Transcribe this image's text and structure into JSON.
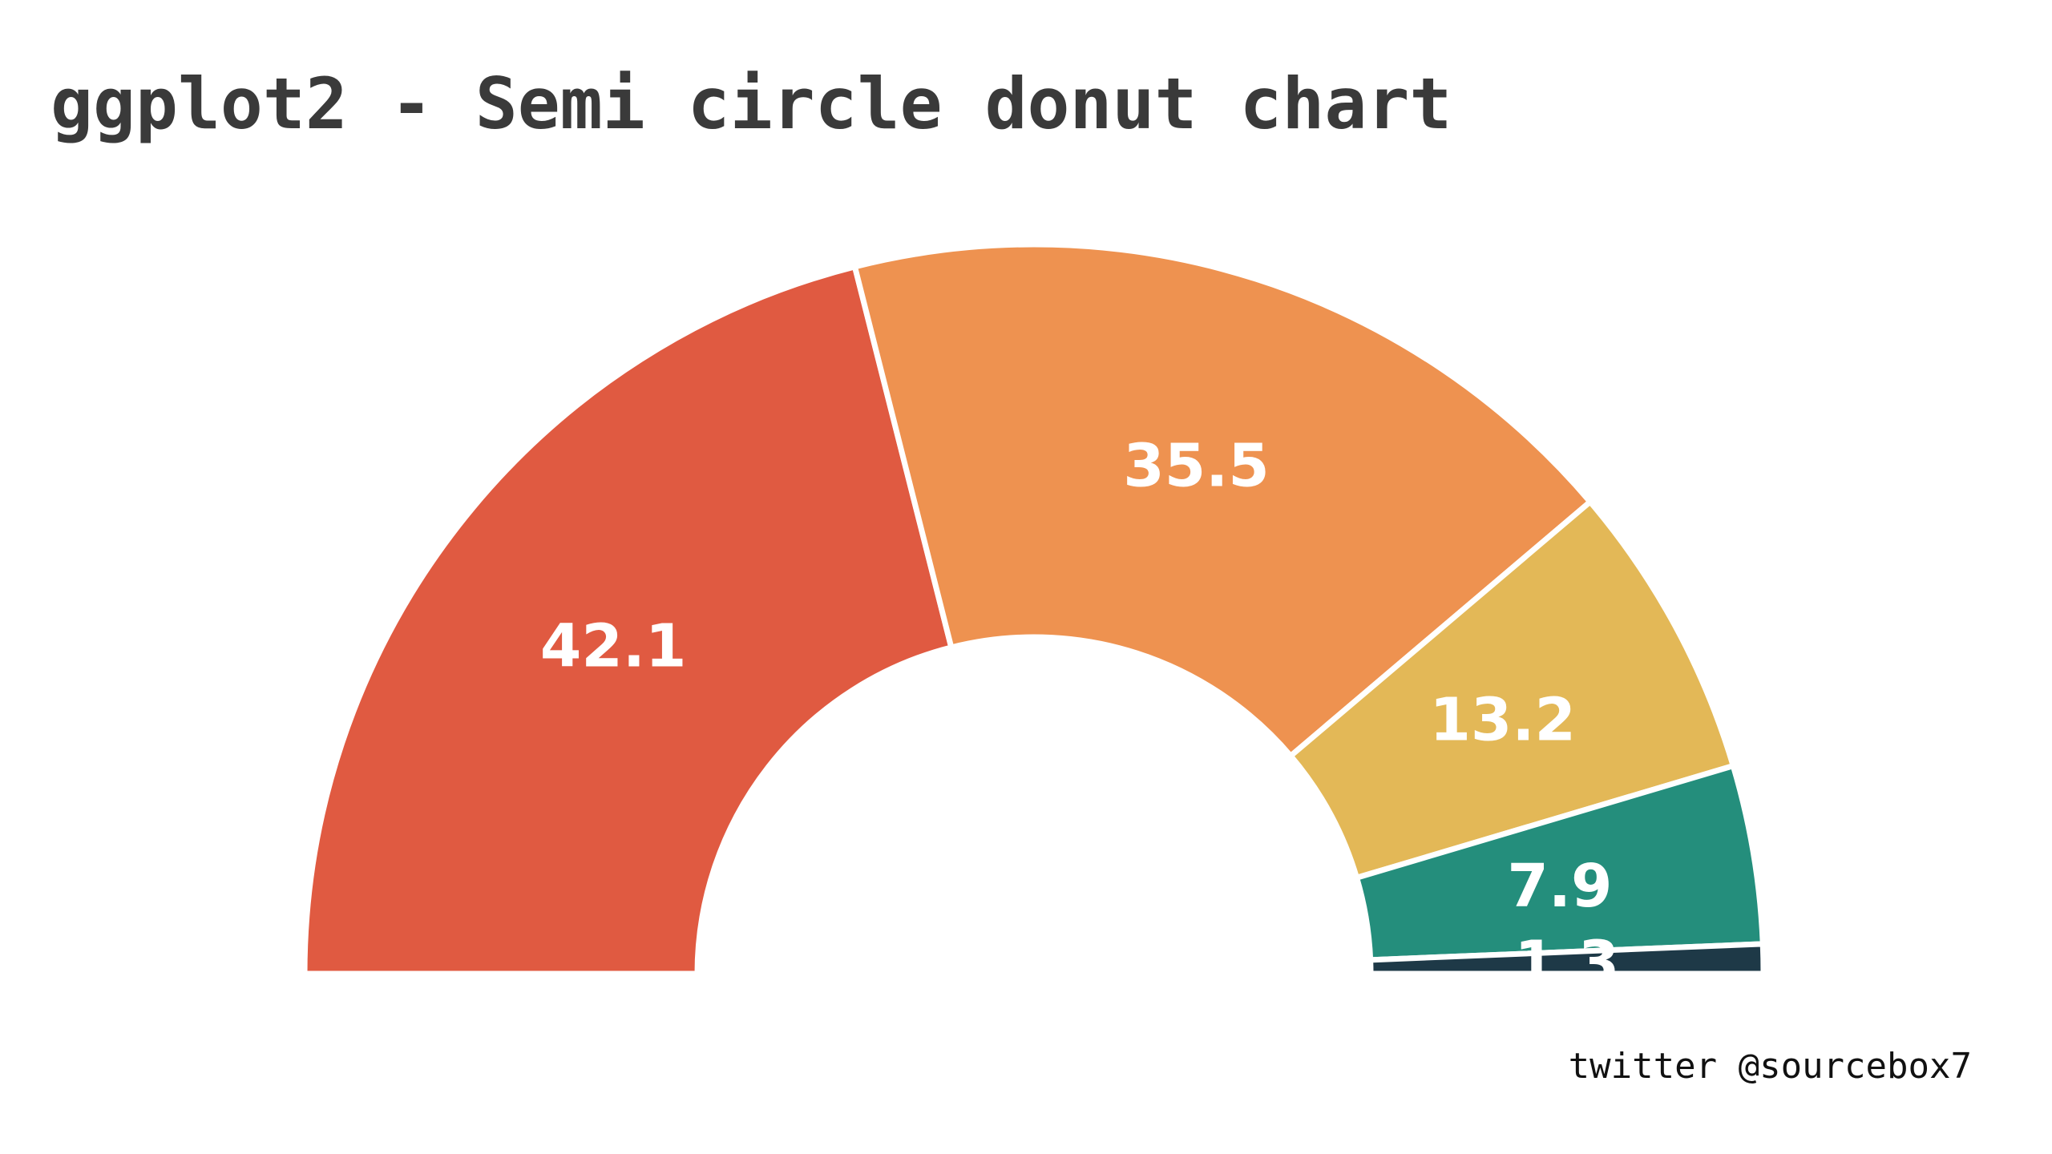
{
  "title": "ggplot2 - Semi circle donut chart",
  "caption": "twitter @sourcebox7",
  "chart_data": {
    "type": "pie",
    "variant": "semi-circle donut",
    "title": "ggplot2 - Semi circle donut chart",
    "legend": "none",
    "slices": [
      {
        "value": 42.1,
        "label": "42.1",
        "color": "#e05a41"
      },
      {
        "value": 35.5,
        "label": "35.5",
        "color": "#ee9250"
      },
      {
        "value": 13.2,
        "label": "13.2",
        "color": "#e3b857"
      },
      {
        "value": 7.9,
        "label": "7.9",
        "color": "#248e7c"
      },
      {
        "value": 1.3,
        "label": "1.3",
        "color": "#1e3947"
      }
    ],
    "slice_border_color": "#ffffff"
  }
}
